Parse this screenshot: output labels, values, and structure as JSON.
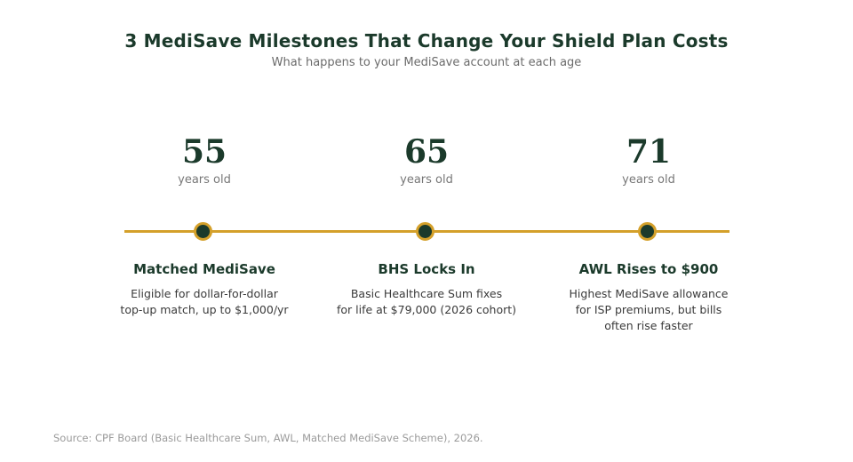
{
  "header": {
    "title": "3 MediSave Milestones That Change Your Shield Plan Costs",
    "subtitle": "What happens to your MediSave account at each age"
  },
  "colors": {
    "primary": "#1b3a2b",
    "accent": "#d4a02a",
    "muted": "#777777"
  },
  "milestones": [
    {
      "age": "55",
      "age_unit": "years old",
      "title": "Matched MediSave",
      "description_lines": [
        "Eligible for dollar-for-dollar",
        "top-up match, up to $1,000/yr"
      ]
    },
    {
      "age": "65",
      "age_unit": "years old",
      "title": "BHS Locks In",
      "description_lines": [
        "Basic Healthcare Sum fixes",
        "for life at $79,000 (2026 cohort)"
      ]
    },
    {
      "age": "71",
      "age_unit": "years old",
      "title": "AWL Rises to $900",
      "description_lines": [
        "Highest MediSave allowance",
        "for ISP premiums, but bills",
        "often rise faster"
      ]
    }
  ],
  "footer": {
    "source": "Source: CPF Board (Basic Healthcare Sum, AWL, Matched MediSave Scheme), 2026."
  }
}
